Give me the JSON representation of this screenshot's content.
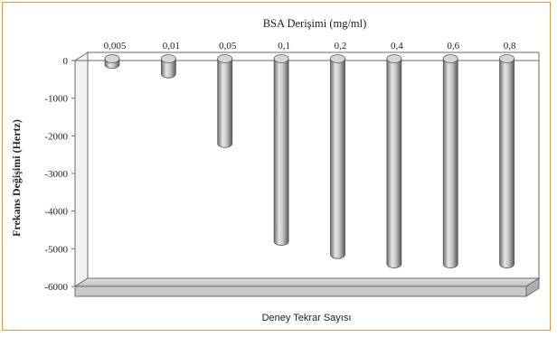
{
  "chart_data": {
    "type": "bar",
    "title": "BSA Derişimi (mg/ml)",
    "xlabel": "Deney Tekrar Sayısı",
    "ylabel": "Frekans Değişimi (Hertz)",
    "categories": [
      "0,005",
      "0,01",
      "0,05",
      "0,1",
      "0,2",
      "0,4",
      "0,6",
      "0,8"
    ],
    "values": [
      -150,
      -400,
      -2250,
      -4850,
      -5200,
      -5450,
      -5450,
      -5450
    ],
    "ylim": [
      -6000,
      0
    ],
    "yticks": [
      "0",
      "-1000",
      "-2000",
      "-3000",
      "-4000",
      "-5000",
      "-6000"
    ],
    "grid": false,
    "legend": "none",
    "bar_style": "3d-cylinder",
    "colors": {
      "bar": "#a6a6a6",
      "bar_highlight": "#e6e6e6",
      "frame": "#e8944a",
      "floor": "#d4d4d4"
    }
  }
}
